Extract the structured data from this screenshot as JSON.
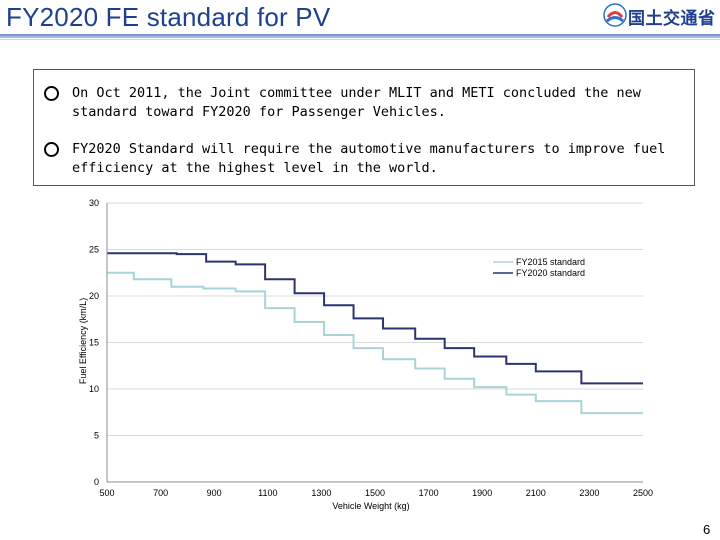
{
  "slide": {
    "title": "FY2020 FE standard for PV",
    "logo_text": "国土交通省",
    "page_number": "6",
    "bullets": [
      "On Oct 2011, the Joint committee under MLIT and METI concluded the new standard toward FY2020 for Passenger Vehicles.",
      "FY2020 Standard will require the automotive manufacturers to improve  fuel efficiency at the highest level in the world."
    ]
  },
  "colors": {
    "title": "#1f3f8f",
    "fy2015": "#a8d4d8",
    "fy2020": "#2c3470"
  },
  "chart_data": {
    "type": "line",
    "step": true,
    "xlabel": "Vehicle Weight (kg)",
    "ylabel": "Fuel Efficiency (km/L)",
    "xlim": [
      500,
      2500
    ],
    "ylim": [
      0,
      30
    ],
    "xticks": [
      500,
      700,
      900,
      1100,
      1300,
      1500,
      1700,
      1900,
      2100,
      2300,
      2500
    ],
    "yticks": [
      0,
      5,
      10,
      15,
      20,
      25,
      30
    ],
    "grid": true,
    "legend_position": "top-right",
    "series": [
      {
        "name": "FY2015 standard",
        "color": "#a8d4d8",
        "x": [
          500,
          600,
          740,
          860,
          980,
          1090,
          1200,
          1310,
          1420,
          1530,
          1650,
          1760,
          1870,
          1990,
          2100,
          2270,
          2500
        ],
        "y": [
          22.5,
          21.8,
          21.0,
          20.8,
          20.5,
          18.7,
          17.2,
          15.8,
          14.4,
          13.2,
          12.2,
          11.1,
          10.2,
          9.4,
          8.7,
          7.4,
          7.4
        ]
      },
      {
        "name": "FY2020 standard",
        "color": "#2c3470",
        "x": [
          500,
          640,
          760,
          870,
          980,
          1090,
          1200,
          1310,
          1420,
          1530,
          1650,
          1760,
          1870,
          1990,
          2100,
          2270,
          2500
        ],
        "y": [
          24.6,
          24.6,
          24.5,
          23.7,
          23.4,
          21.8,
          20.3,
          19.0,
          17.6,
          16.5,
          15.4,
          14.4,
          13.5,
          12.7,
          11.9,
          10.6,
          10.6
        ]
      }
    ]
  }
}
